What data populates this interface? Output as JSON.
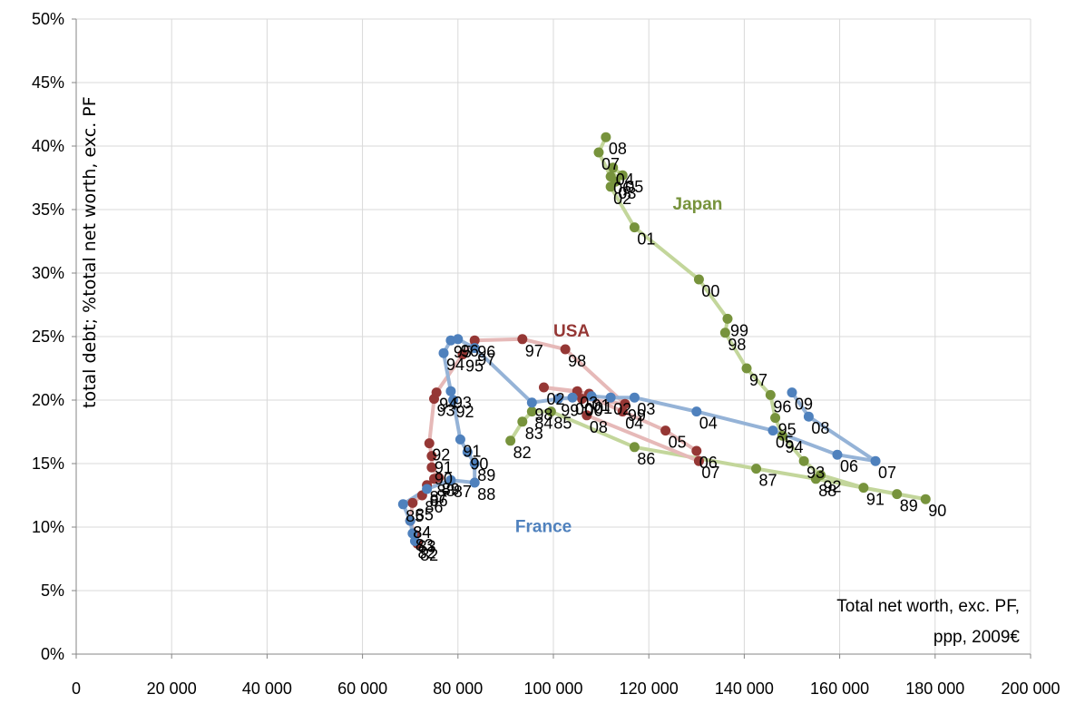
{
  "chart_data": {
    "type": "scatter",
    "title": "",
    "xlabel_line1": "Total net worth, exc. PF,",
    "xlabel_line2": "ppp, 2009€",
    "ylabel": "total debt; %total net worth, exc. PF",
    "xlim": [
      0,
      200000
    ],
    "ylim": [
      0,
      0.5
    ],
    "grid": true,
    "x_ticks": [
      "0",
      "20 000",
      "40 000",
      "60 000",
      "80 000",
      "100 000",
      "120 000",
      "140 000",
      "160 000",
      "180 000",
      "200 000"
    ],
    "y_ticks": [
      "0%",
      "5%",
      "10%",
      "15%",
      "20%",
      "25%",
      "30%",
      "35%",
      "40%",
      "45%",
      "50%"
    ],
    "series": [
      {
        "name": "Japan",
        "color": "#77933c",
        "line_color": "#c3d69b",
        "points": [
          {
            "label": "82",
            "x": 91000,
            "y": 0.168
          },
          {
            "label": "83",
            "x": 93500,
            "y": 0.183
          },
          {
            "label": "84",
            "x": 95500,
            "y": 0.191
          },
          {
            "label": "85",
            "x": 99500,
            "y": 0.191
          },
          {
            "label": "86",
            "x": 117000,
            "y": 0.163
          },
          {
            "label": "87",
            "x": 142500,
            "y": 0.146
          },
          {
            "label": "88",
            "x": 155000,
            "y": 0.138
          },
          {
            "label": "89",
            "x": 172000,
            "y": 0.126
          },
          {
            "label": "90",
            "x": 178000,
            "y": 0.122
          },
          {
            "label": "91",
            "x": 165000,
            "y": 0.131
          },
          {
            "label": "92",
            "x": 156000,
            "y": 0.141
          },
          {
            "label": "93",
            "x": 152500,
            "y": 0.152
          },
          {
            "label": "94",
            "x": 148000,
            "y": 0.172
          },
          {
            "label": "95",
            "x": 146500,
            "y": 0.186
          },
          {
            "label": "96",
            "x": 145500,
            "y": 0.204
          },
          {
            "label": "97",
            "x": 140500,
            "y": 0.225
          },
          {
            "label": "98",
            "x": 136000,
            "y": 0.253
          },
          {
            "label": "99",
            "x": 136500,
            "y": 0.264
          },
          {
            "label": "00",
            "x": 130500,
            "y": 0.295
          },
          {
            "label": "01",
            "x": 117000,
            "y": 0.336
          },
          {
            "label": "02",
            "x": 112000,
            "y": 0.368
          },
          {
            "label": "03",
            "x": 113000,
            "y": 0.372
          },
          {
            "label": "04",
            "x": 112500,
            "y": 0.383
          },
          {
            "label": "05",
            "x": 114500,
            "y": 0.377
          },
          {
            "label": "06",
            "x": 112000,
            "y": 0.376
          },
          {
            "label": "07",
            "x": 109500,
            "y": 0.395
          },
          {
            "label": "08",
            "x": 111000,
            "y": 0.407
          }
        ]
      },
      {
        "name": "USA",
        "color": "#953735",
        "line_color": "#e6b9b8",
        "points": [
          {
            "label": "82",
            "x": 71500,
            "y": 0.087
          },
          {
            "label": "83",
            "x": 71000,
            "y": 0.094
          },
          {
            "label": "84",
            "x": 70000,
            "y": 0.105
          },
          {
            "label": "85",
            "x": 70500,
            "y": 0.119
          },
          {
            "label": "86",
            "x": 72500,
            "y": 0.125
          },
          {
            "label": "87",
            "x": 73500,
            "y": 0.133
          },
          {
            "label": "88",
            "x": 75000,
            "y": 0.138
          },
          {
            "label": "89",
            "x": 76000,
            "y": 0.139
          },
          {
            "label": "90",
            "x": 74500,
            "y": 0.147
          },
          {
            "label": "91",
            "x": 74500,
            "y": 0.156
          },
          {
            "label": "92",
            "x": 74000,
            "y": 0.166
          },
          {
            "label": "93",
            "x": 75000,
            "y": 0.201
          },
          {
            "label": "94",
            "x": 75500,
            "y": 0.206
          },
          {
            "label": "95",
            "x": 81000,
            "y": 0.236
          },
          {
            "label": "96",
            "x": 83500,
            "y": 0.247
          },
          {
            "label": "97",
            "x": 93500,
            "y": 0.248
          },
          {
            "label": "98",
            "x": 102500,
            "y": 0.24
          },
          {
            "label": "99",
            "x": 115000,
            "y": 0.197
          },
          {
            "label": "00",
            "x": 106000,
            "y": 0.201
          },
          {
            "label": "01",
            "x": 107500,
            "y": 0.205
          },
          {
            "label": "02",
            "x": 98000,
            "y": 0.21
          },
          {
            "label": "03",
            "x": 105000,
            "y": 0.207
          },
          {
            "label": "04",
            "x": 114500,
            "y": 0.191
          },
          {
            "label": "05",
            "x": 123500,
            "y": 0.176
          },
          {
            "label": "06",
            "x": 130000,
            "y": 0.16
          },
          {
            "label": "07",
            "x": 130500,
            "y": 0.152
          },
          {
            "label": "08",
            "x": 107000,
            "y": 0.188
          }
        ]
      },
      {
        "name": "France",
        "color": "#4f81bd",
        "line_color": "#95b3d7",
        "points": [
          {
            "label": "82",
            "x": 71000,
            "y": 0.089
          },
          {
            "label": "83",
            "x": 70500,
            "y": 0.095
          },
          {
            "label": "84",
            "x": 70000,
            "y": 0.105
          },
          {
            "label": "85",
            "x": 68500,
            "y": 0.118
          },
          {
            "label": "86",
            "x": 73500,
            "y": 0.13
          },
          {
            "label": "87",
            "x": 78500,
            "y": 0.137
          },
          {
            "label": "88",
            "x": 83500,
            "y": 0.135
          },
          {
            "label": "89",
            "x": 83500,
            "y": 0.15
          },
          {
            "label": "90",
            "x": 82000,
            "y": 0.159
          },
          {
            "label": "91",
            "x": 80500,
            "y": 0.169
          },
          {
            "label": "92",
            "x": 79000,
            "y": 0.2
          },
          {
            "label": "93",
            "x": 78500,
            "y": 0.207
          },
          {
            "label": "94",
            "x": 77000,
            "y": 0.237
          },
          {
            "label": "95",
            "x": 78500,
            "y": 0.247
          },
          {
            "label": "96",
            "x": 80000,
            "y": 0.248
          },
          {
            "label": "97",
            "x": 83500,
            "y": 0.241
          },
          {
            "label": "98",
            "x": 95500,
            "y": 0.198
          },
          {
            "label": "99",
            "x": 101000,
            "y": 0.201
          },
          {
            "label": "00",
            "x": 104000,
            "y": 0.202
          },
          {
            "label": "01",
            "x": 108000,
            "y": 0.203
          },
          {
            "label": "02",
            "x": 112000,
            "y": 0.202
          },
          {
            "label": "03",
            "x": 117000,
            "y": 0.202
          },
          {
            "label": "04",
            "x": 130000,
            "y": 0.191
          },
          {
            "label": "05",
            "x": 146000,
            "y": 0.176
          },
          {
            "label": "06",
            "x": 159500,
            "y": 0.157
          },
          {
            "label": "07",
            "x": 167500,
            "y": 0.152
          },
          {
            "label": "08",
            "x": 153500,
            "y": 0.187
          },
          {
            "label": "09",
            "x": 150000,
            "y": 0.206
          }
        ]
      }
    ]
  }
}
